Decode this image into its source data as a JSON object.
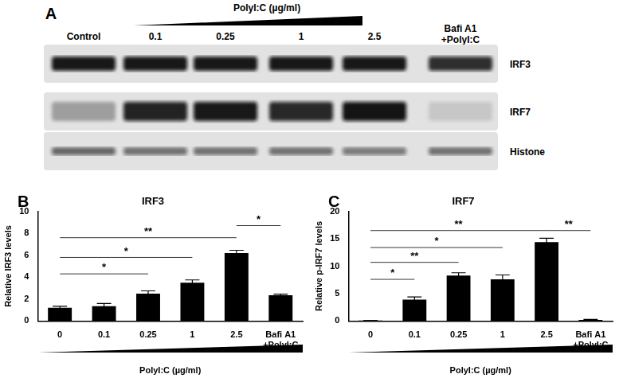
{
  "blot": {
    "panel_label": "A",
    "treatment_label": "PolyI:C (µg/ml)",
    "lanes": [
      "Control",
      "0.1",
      "0.25",
      "1",
      "2.5",
      [
        "Bafi A1",
        "+PolyI:C"
      ]
    ],
    "rows": [
      "IRF3",
      "IRF7",
      "Histone"
    ]
  },
  "chart_data": [
    {
      "type": "bar",
      "panel_label": "B",
      "title": "IRF3",
      "x_label": "PolyI:C (µg/ml)",
      "y_label": "Relative IRF3 levels",
      "categories": [
        "0",
        "0.1",
        "0.25",
        "1",
        "2.5",
        [
          "Bafi A1",
          "+PolyI:C"
        ]
      ],
      "values": [
        1.2,
        1.35,
        2.5,
        3.5,
        6.2,
        2.35
      ],
      "errors": [
        0.15,
        0.25,
        0.25,
        0.25,
        0.25,
        0.1
      ],
      "color": "#000000",
      "ylim": [
        0,
        10
      ],
      "yticks": [
        0,
        2,
        4,
        6,
        8,
        10
      ],
      "grid": false,
      "significance": [
        {
          "from": 0,
          "to": 2,
          "y": 4.3,
          "label": "*"
        },
        {
          "from": 0,
          "to": 3,
          "y": 5.8,
          "label": "*"
        },
        {
          "from": 0,
          "to": 4,
          "y": 7.6,
          "label": "**"
        },
        {
          "from": 4,
          "to": 5,
          "y": 8.7,
          "label": "*"
        }
      ]
    },
    {
      "type": "bar",
      "panel_label": "C",
      "title": "IRF7",
      "x_label": "PolyI:C (µg/ml)",
      "y_label": "Relative p-IRF7 levels",
      "categories": [
        "0",
        "0.1",
        "0.25",
        "1",
        "2.5",
        [
          "Bafi A1",
          "+PolyI:C"
        ]
      ],
      "values": [
        0.1,
        3.9,
        8.3,
        7.6,
        14.4,
        0.2
      ],
      "errors": [
        0,
        0.5,
        0.5,
        0.8,
        0.7,
        0.1
      ],
      "color": "#000000",
      "ylim": [
        0,
        20
      ],
      "yticks": [
        0,
        5,
        10,
        15,
        20
      ],
      "grid": false,
      "significance": [
        {
          "from": 0,
          "to": 1,
          "y": 7.6,
          "label": "*"
        },
        {
          "from": 0,
          "to": 2,
          "y": 10.7,
          "label": "**"
        },
        {
          "from": 0,
          "to": 3,
          "y": 13.4,
          "label": "*"
        },
        {
          "from": 0,
          "to": 4,
          "y": 16.5,
          "label": "**"
        },
        {
          "from": 4,
          "to": 5,
          "y": 16.5,
          "label": "**"
        }
      ]
    }
  ]
}
